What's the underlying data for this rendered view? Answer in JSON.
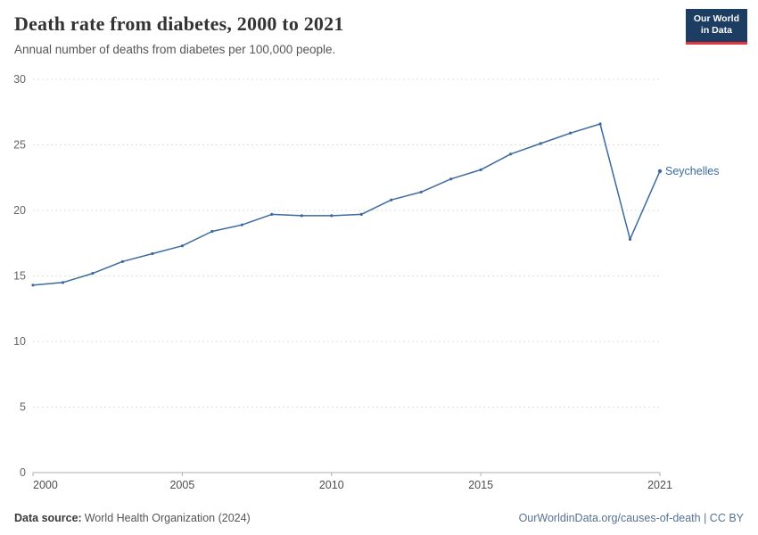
{
  "header": {
    "title": "Death rate from diabetes, 2000 to 2021",
    "subtitle": "Annual number of deaths from diabetes per 100,000 people."
  },
  "logo": {
    "line1": "Our World",
    "line2": "in Data",
    "bg_color": "#1d3d63",
    "accent_color": "#e5353f"
  },
  "footer": {
    "source_label": "Data source:",
    "source_value": "World Health Organization (2024)",
    "right": "OurWorldinData.org/causes-of-death | CC BY"
  },
  "chart_data": {
    "type": "line",
    "title": "Death rate from diabetes, 2000 to 2021",
    "subtitle": "Annual number of deaths from diabetes per 100,000 people.",
    "xlabel": "",
    "ylabel": "",
    "xlim": [
      2000,
      2021
    ],
    "ylim": [
      0,
      30
    ],
    "xticks": [
      2000,
      2005,
      2010,
      2015,
      2021
    ],
    "yticks": [
      0,
      5,
      10,
      15,
      20,
      25,
      30
    ],
    "grid": "horizontal-dashed",
    "legend_position": "end-of-line-label",
    "line_color": "#3d6a9e",
    "series": [
      {
        "name": "Seychelles",
        "x": [
          2000,
          2001,
          2002,
          2003,
          2004,
          2005,
          2006,
          2007,
          2008,
          2009,
          2010,
          2011,
          2012,
          2013,
          2014,
          2015,
          2016,
          2017,
          2018,
          2019,
          2020,
          2021
        ],
        "values": [
          14.3,
          14.5,
          15.2,
          16.1,
          16.7,
          17.3,
          18.4,
          18.9,
          19.7,
          19.6,
          19.6,
          19.7,
          20.8,
          21.4,
          22.4,
          23.1,
          24.3,
          25.1,
          25.9,
          26.6,
          17.8,
          23.0
        ]
      }
    ]
  }
}
